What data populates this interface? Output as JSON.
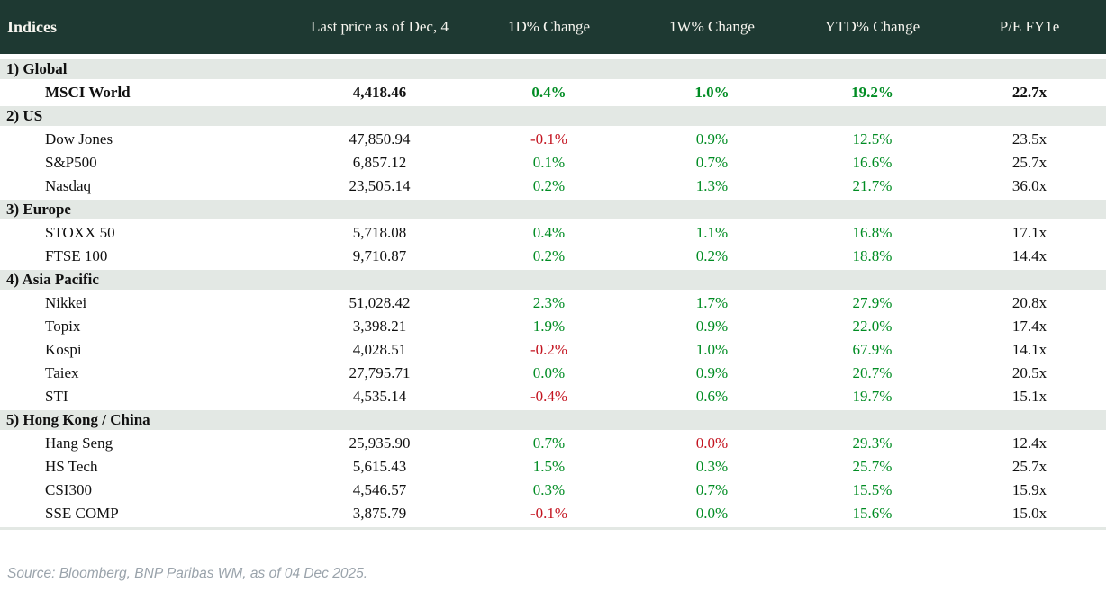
{
  "table": {
    "title": "Indices",
    "columns": [
      "Last price as of Dec, 4",
      "1D% Change",
      "1W% Change",
      "YTD% Change",
      "P/E FY1e"
    ],
    "colors": {
      "up": "#008c23",
      "down": "#c3131f",
      "header_bg": "#1e3932",
      "section_bg": "#e3e8e4"
    },
    "sections": [
      {
        "label": "1) Global",
        "rows": [
          {
            "name": "MSCI World",
            "bold": true,
            "price": "4,418.46",
            "d1": "0.4%",
            "d1_dir": "up",
            "w1": "1.0%",
            "w1_dir": "up",
            "ytd": "19.2%",
            "ytd_dir": "up",
            "pe": "22.7x"
          }
        ]
      },
      {
        "label": "2) US",
        "rows": [
          {
            "name": "Dow Jones",
            "price": "47,850.94",
            "d1": "-0.1%",
            "d1_dir": "down",
            "w1": "0.9%",
            "w1_dir": "up",
            "ytd": "12.5%",
            "ytd_dir": "up",
            "pe": "23.5x"
          },
          {
            "name": "S&P500",
            "price": "6,857.12",
            "d1": "0.1%",
            "d1_dir": "up",
            "w1": "0.7%",
            "w1_dir": "up",
            "ytd": "16.6%",
            "ytd_dir": "up",
            "pe": "25.7x"
          },
          {
            "name": "Nasdaq",
            "price": "23,505.14",
            "d1": "0.2%",
            "d1_dir": "up",
            "w1": "1.3%",
            "w1_dir": "up",
            "ytd": "21.7%",
            "ytd_dir": "up",
            "pe": "36.0x"
          }
        ]
      },
      {
        "label": "3) Europe",
        "rows": [
          {
            "name": "STOXX 50",
            "price": "5,718.08",
            "d1": "0.4%",
            "d1_dir": "up",
            "w1": "1.1%",
            "w1_dir": "up",
            "ytd": "16.8%",
            "ytd_dir": "up",
            "pe": "17.1x"
          },
          {
            "name": "FTSE 100",
            "price": "9,710.87",
            "d1": "0.2%",
            "d1_dir": "up",
            "w1": "0.2%",
            "w1_dir": "up",
            "ytd": "18.8%",
            "ytd_dir": "up",
            "pe": "14.4x"
          }
        ]
      },
      {
        "label": "4) Asia Pacific",
        "rows": [
          {
            "name": "Nikkei",
            "price": "51,028.42",
            "d1": "2.3%",
            "d1_dir": "up",
            "w1": "1.7%",
            "w1_dir": "up",
            "ytd": "27.9%",
            "ytd_dir": "up",
            "pe": "20.8x"
          },
          {
            "name": "Topix",
            "price": "3,398.21",
            "d1": "1.9%",
            "d1_dir": "up",
            "w1": "0.9%",
            "w1_dir": "up",
            "ytd": "22.0%",
            "ytd_dir": "up",
            "pe": "17.4x"
          },
          {
            "name": "Kospi",
            "price": "4,028.51",
            "d1": "-0.2%",
            "d1_dir": "down",
            "w1": "1.0%",
            "w1_dir": "up",
            "ytd": "67.9%",
            "ytd_dir": "up",
            "pe": "14.1x"
          },
          {
            "name": "Taiex",
            "price": "27,795.71",
            "d1": "0.0%",
            "d1_dir": "up",
            "w1": "0.9%",
            "w1_dir": "up",
            "ytd": "20.7%",
            "ytd_dir": "up",
            "pe": "20.5x"
          },
          {
            "name": "STI",
            "price": "4,535.14",
            "d1": "-0.4%",
            "d1_dir": "down",
            "w1": "0.6%",
            "w1_dir": "up",
            "ytd": "19.7%",
            "ytd_dir": "up",
            "pe": "15.1x"
          }
        ]
      },
      {
        "label": "5) Hong Kong / China",
        "rows": [
          {
            "name": "Hang Seng",
            "price": "25,935.90",
            "d1": "0.7%",
            "d1_dir": "up",
            "w1": "0.0%",
            "w1_dir": "down",
            "ytd": "29.3%",
            "ytd_dir": "up",
            "pe": "12.4x"
          },
          {
            "name": "HS Tech",
            "price": "5,615.43",
            "d1": "1.5%",
            "d1_dir": "up",
            "w1": "0.3%",
            "w1_dir": "up",
            "ytd": "25.7%",
            "ytd_dir": "up",
            "pe": "25.7x"
          },
          {
            "name": "CSI300",
            "price": "4,546.57",
            "d1": "0.3%",
            "d1_dir": "up",
            "w1": "0.7%",
            "w1_dir": "up",
            "ytd": "15.5%",
            "ytd_dir": "up",
            "pe": "15.9x"
          },
          {
            "name": "SSE COMP",
            "price": "3,875.79",
            "d1": "-0.1%",
            "d1_dir": "down",
            "w1": "0.0%",
            "w1_dir": "up",
            "ytd": "15.6%",
            "ytd_dir": "up",
            "pe": "15.0x"
          }
        ]
      }
    ]
  },
  "footer": {
    "source": "Source: Bloomberg, BNP Paribas WM, as of 04 Dec 2025."
  }
}
